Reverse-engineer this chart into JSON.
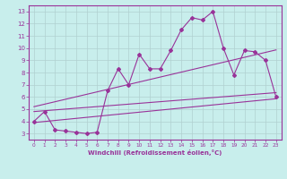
{
  "xlabel": "Windchill (Refroidissement éolien,°C)",
  "bg_color": "#c8eeec",
  "line_color": "#993399",
  "grid_color": "#b0d0d0",
  "spine_color": "#993399",
  "xlim": [
    -0.5,
    23.5
  ],
  "ylim": [
    2.5,
    13.5
  ],
  "xticks": [
    0,
    1,
    2,
    3,
    4,
    5,
    6,
    7,
    8,
    9,
    10,
    11,
    12,
    13,
    14,
    15,
    16,
    17,
    18,
    19,
    20,
    21,
    22,
    23
  ],
  "yticks": [
    3,
    4,
    5,
    6,
    7,
    8,
    9,
    10,
    11,
    12,
    13
  ],
  "zigzag_x": [
    0,
    1,
    2,
    3,
    4,
    5,
    6,
    7,
    8,
    9,
    10,
    11,
    12,
    13,
    14,
    15,
    16,
    17,
    18,
    19,
    20,
    21,
    22,
    23
  ],
  "zigzag_y": [
    4.0,
    4.8,
    3.3,
    3.2,
    3.1,
    3.0,
    3.1,
    6.5,
    8.3,
    7.0,
    9.5,
    8.3,
    8.3,
    9.8,
    11.5,
    12.5,
    12.3,
    13.0,
    10.0,
    7.8,
    9.8,
    9.7,
    9.0,
    6.0
  ],
  "line1_x": [
    0,
    23
  ],
  "line1_y": [
    3.9,
    5.85
  ],
  "line2_x": [
    0,
    23
  ],
  "line2_y": [
    4.8,
    6.35
  ],
  "line3_x": [
    0,
    23
  ],
  "line3_y": [
    5.2,
    9.85
  ]
}
